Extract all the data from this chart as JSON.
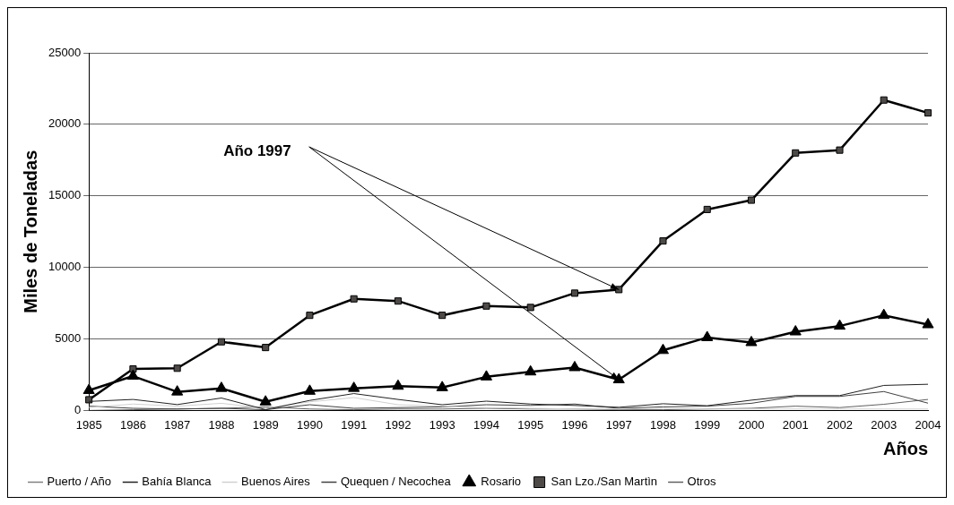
{
  "chart_data": {
    "type": "line",
    "xlabel": "Años",
    "ylabel": "Miles de Toneladas",
    "categories": [
      "1985",
      "1986",
      "1987",
      "1988",
      "1989",
      "1990",
      "1991",
      "1992",
      "1993",
      "1994",
      "1995",
      "1996",
      "1997",
      "1998",
      "1999",
      "2000",
      "2001",
      "2002",
      "2003",
      "2004"
    ],
    "series": [
      {
        "name": "Puerto / Año",
        "color": "#808080",
        "values": [
          null,
          null,
          null,
          null,
          null,
          null,
          null,
          null,
          null,
          null,
          null,
          null,
          null,
          null,
          null,
          null,
          null,
          null,
          null,
          null
        ],
        "marker": "none"
      },
      {
        "name": "Bahía Blanca",
        "color": "#202020",
        "values": [
          630,
          770,
          410,
          870,
          60,
          700,
          1180,
          770,
          400,
          650,
          450,
          350,
          220,
          470,
          330,
          720,
          1040,
          1040,
          1750,
          1830
        ],
        "marker": "none"
      },
      {
        "name": "Buenos Aires",
        "color": "#d0d0d0",
        "values": [
          200,
          450,
          300,
          500,
          150,
          600,
          900,
          400,
          300,
          200,
          150,
          100,
          100,
          150,
          100,
          100,
          100,
          100,
          100,
          100
        ],
        "marker": "none"
      },
      {
        "name": "Quequen / Necochea",
        "color": "#404040",
        "values": [
          300,
          150,
          100,
          150,
          50,
          400,
          150,
          200,
          250,
          400,
          350,
          450,
          150,
          250,
          300,
          500,
          980,
          980,
          1320,
          510
        ],
        "marker": "none"
      },
      {
        "name": "Rosario",
        "color": "#000000",
        "values": [
          1400,
          2400,
          1300,
          1550,
          600,
          1350,
          1550,
          1700,
          1600,
          2350,
          2700,
          3000,
          2150,
          4200,
          5100,
          4750,
          5500,
          5900,
          6650,
          6000
        ],
        "marker": "triangle"
      },
      {
        "name": "San Lzo./San Martìn",
        "color": "#000000",
        "values": [
          750,
          2900,
          2950,
          4800,
          4400,
          6650,
          7800,
          7650,
          6650,
          7300,
          7200,
          8200,
          8450,
          11850,
          14050,
          14700,
          18000,
          18200,
          21700,
          20800
        ],
        "marker": "square"
      },
      {
        "name": "Otros",
        "color": "#606060",
        "values": [
          0,
          50,
          100,
          150,
          250,
          100,
          50,
          100,
          100,
          150,
          100,
          100,
          50,
          50,
          100,
          150,
          300,
          200,
          430,
          770
        ],
        "marker": "none"
      }
    ],
    "ylim": [
      0,
      25000
    ],
    "yticks": [
      0,
      5000,
      10000,
      15000,
      20000,
      25000
    ],
    "grid": "y",
    "legend": "bottom",
    "annotations": [
      {
        "text": "Año 1997",
        "x": "1997",
        "y": 8450
      }
    ]
  }
}
